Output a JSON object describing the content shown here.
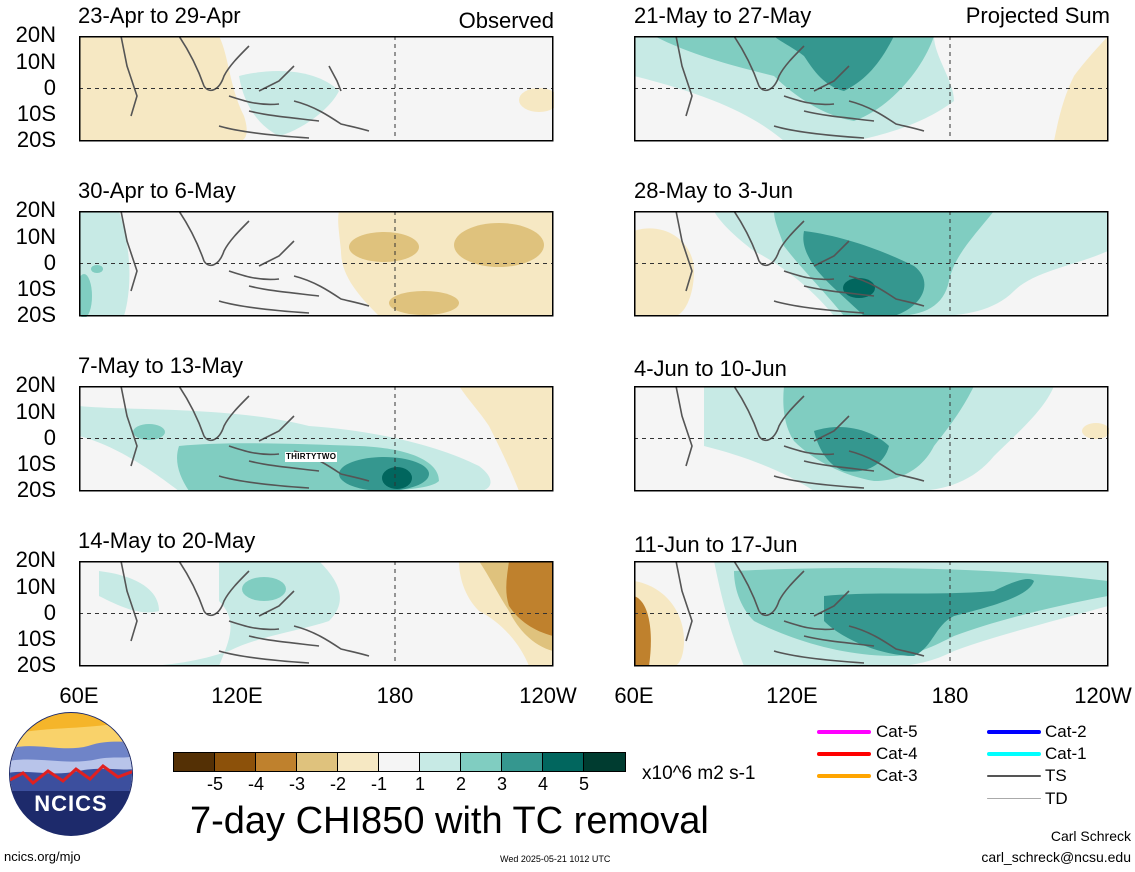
{
  "panels": [
    {
      "title": "23-Apr to 29-Apr",
      "tag": "Observed"
    },
    {
      "title": "21-May to 27-May",
      "tag": "Projected Sum"
    },
    {
      "title": "30-Apr to 6-May",
      "tag": ""
    },
    {
      "title": "28-May to 3-Jun",
      "tag": ""
    },
    {
      "title": "7-May to 13-May",
      "tag": "",
      "annotation": "THIRTYTWO"
    },
    {
      "title": "4-Jun to 10-Jun",
      "tag": ""
    },
    {
      "title": "14-May to 20-May",
      "tag": ""
    },
    {
      "title": "11-Jun to 17-Jun",
      "tag": ""
    }
  ],
  "axes": {
    "lat_ticks": [
      "20N",
      "10N",
      "0",
      "10S",
      "20S"
    ],
    "lon_ticks_left": [
      "60E",
      "120E",
      "180",
      "120W"
    ],
    "lon_ticks_right": [
      "60E",
      "120E",
      "180",
      "120W"
    ]
  },
  "colorbar": {
    "labels": [
      "-5",
      "-4",
      "-3",
      "-2",
      "-1",
      "1",
      "2",
      "3",
      "4",
      "5"
    ],
    "colors": [
      "#543005",
      "#8c510a",
      "#bf812d",
      "#dfc27d",
      "#f6e8c3",
      "#f5f5f5",
      "#c7eae5",
      "#80cdc1",
      "#35978f",
      "#01665e",
      "#003c30"
    ],
    "units": "x10^6 m2 s-1"
  },
  "main_title": "7-day CHI850 with TC removal",
  "legend": [
    {
      "label": "Cat-5",
      "color": "#ff00ff"
    },
    {
      "label": "Cat-4",
      "color": "#ff0000"
    },
    {
      "label": "Cat-3",
      "color": "#ffa500"
    },
    {
      "label": "Cat-2",
      "color": "#0000ff"
    },
    {
      "label": "Cat-1",
      "color": "#00ffff"
    },
    {
      "label": "TS",
      "color": "#555555"
    },
    {
      "label": "TD",
      "color": "#aaaaaa"
    }
  ],
  "logo": {
    "text": "NCICS"
  },
  "footer": {
    "url": "ncics.org/mjo",
    "timestamp": "Wed 2025-05-21 1012 UTC",
    "author": "Carl Schreck",
    "email": "carl_schreck@ncsu.edu"
  }
}
